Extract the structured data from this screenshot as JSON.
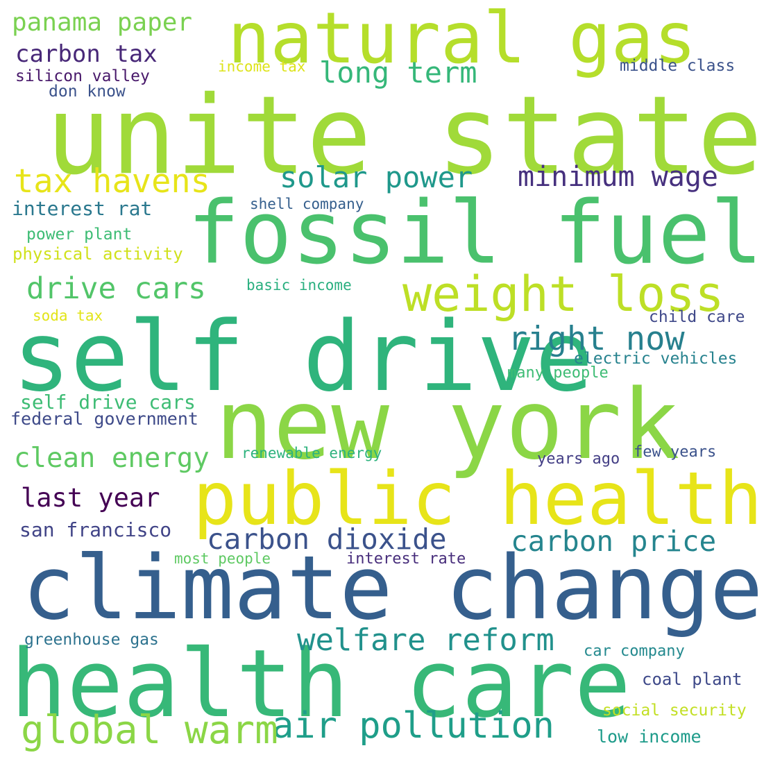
{
  "words": [
    {
      "text": "unite state",
      "color": "#a0da39"
    },
    {
      "text": "fossil fuel",
      "color": "#4ac16d"
    },
    {
      "text": "self drive",
      "color": "#2fb47c"
    },
    {
      "text": "new york",
      "color": "#8bd646"
    },
    {
      "text": "climate change",
      "color": "#355f8d"
    },
    {
      "text": "health care",
      "color": "#37b878"
    },
    {
      "text": "public health",
      "color": "#e7e419"
    },
    {
      "text": "natural gas",
      "color": "#b5de2b"
    },
    {
      "text": "weight loss",
      "color": "#bddf26"
    },
    {
      "text": "air pollution",
      "color": "#1f9e89"
    },
    {
      "text": "global warm",
      "color": "#8bd646"
    },
    {
      "text": "welfare reform",
      "color": "#21918c"
    },
    {
      "text": "carbon dioxide",
      "color": "#3b528b"
    },
    {
      "text": "carbon price",
      "color": "#25858e"
    },
    {
      "text": "right now",
      "color": "#27808e"
    },
    {
      "text": "tax havens",
      "color": "#e7e419"
    },
    {
      "text": "minimum wage",
      "color": "#46307e"
    },
    {
      "text": "solar power",
      "color": "#1f988b"
    },
    {
      "text": "drive cars",
      "color": "#52c569"
    },
    {
      "text": "clean energy",
      "color": "#5ec962"
    },
    {
      "text": "long term",
      "color": "#35b779"
    },
    {
      "text": "last year",
      "color": "#440154"
    },
    {
      "text": "carbon tax",
      "color": "#482878"
    },
    {
      "text": "panama paper",
      "color": "#7ad151"
    },
    {
      "text": "self drive cars",
      "color": "#3dbc74"
    },
    {
      "text": "san francisco",
      "color": "#414487"
    },
    {
      "text": "interest rat",
      "color": "#2a788e"
    },
    {
      "text": "federal government",
      "color": "#3e4a89"
    },
    {
      "text": "greenhouse gas",
      "color": "#2c728e"
    },
    {
      "text": "electric vehicles",
      "color": "#26828e"
    },
    {
      "text": "physical activity",
      "color": "#d0e11c"
    },
    {
      "text": "social security",
      "color": "#c2df23"
    },
    {
      "text": "renewable energy",
      "color": "#2db27d"
    },
    {
      "text": "car company",
      "color": "#23898e"
    },
    {
      "text": "middle class",
      "color": "#3b528b"
    },
    {
      "text": "silicon valley",
      "color": "#48186a"
    },
    {
      "text": "coal plant",
      "color": "#3e4989"
    },
    {
      "text": "child care",
      "color": "#3f4889"
    },
    {
      "text": "low income",
      "color": "#1e9b8a"
    },
    {
      "text": "shell company",
      "color": "#355f8d"
    },
    {
      "text": "power plant",
      "color": "#3dbc74"
    },
    {
      "text": "basic income",
      "color": "#29af7f"
    },
    {
      "text": "interest rate",
      "color": "#472d7b"
    },
    {
      "text": "many people",
      "color": "#3dbc74"
    },
    {
      "text": "years ago",
      "color": "#433e85"
    },
    {
      "text": "few years",
      "color": "#3b528b"
    },
    {
      "text": "don know",
      "color": "#3b528b"
    },
    {
      "text": "income tax",
      "color": "#dde318"
    },
    {
      "text": "soda tax",
      "color": "#e2e418"
    },
    {
      "text": "most people",
      "color": "#5ec962"
    }
  ]
}
